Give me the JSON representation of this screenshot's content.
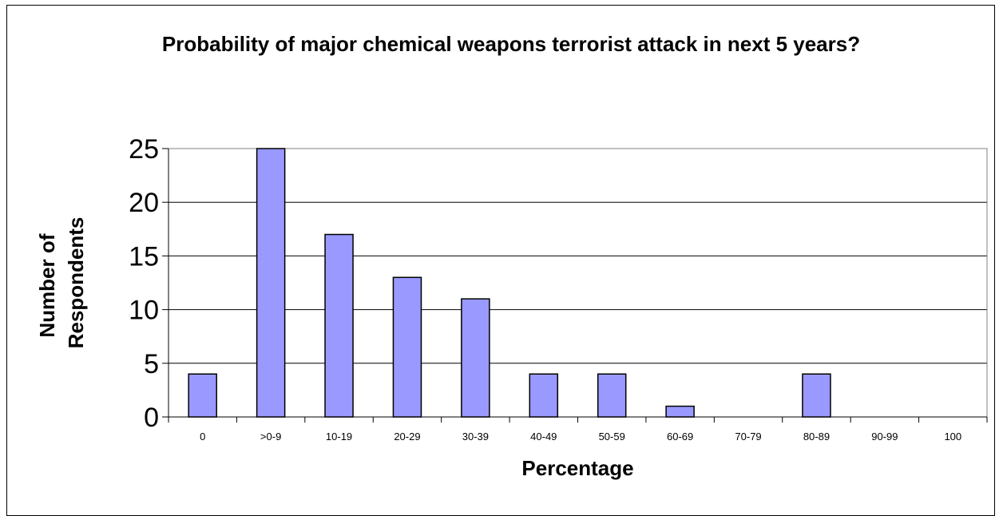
{
  "chart_data": {
    "type": "bar",
    "title": "Probability of major chemical weapons terrorist attack in next 5 years?",
    "xlabel": "Percentage",
    "ylabel": "Number of Respondents",
    "categories": [
      "0",
      ">0-9",
      "10-19",
      "20-29",
      "30-39",
      "40-49",
      "50-59",
      "60-69",
      "70-79",
      "80-89",
      "90-99",
      "100"
    ],
    "values": [
      4,
      25,
      17,
      13,
      11,
      4,
      4,
      1,
      0,
      4,
      0,
      0
    ],
    "ylim": [
      0,
      25
    ],
    "yticks": [
      0,
      5,
      10,
      15,
      20,
      25
    ],
    "grid": true,
    "legend": "none",
    "colors": {
      "bar_fill": "#9999ff",
      "bar_stroke": "#000000",
      "grid": "#000000",
      "plot_border": "#808080"
    }
  }
}
